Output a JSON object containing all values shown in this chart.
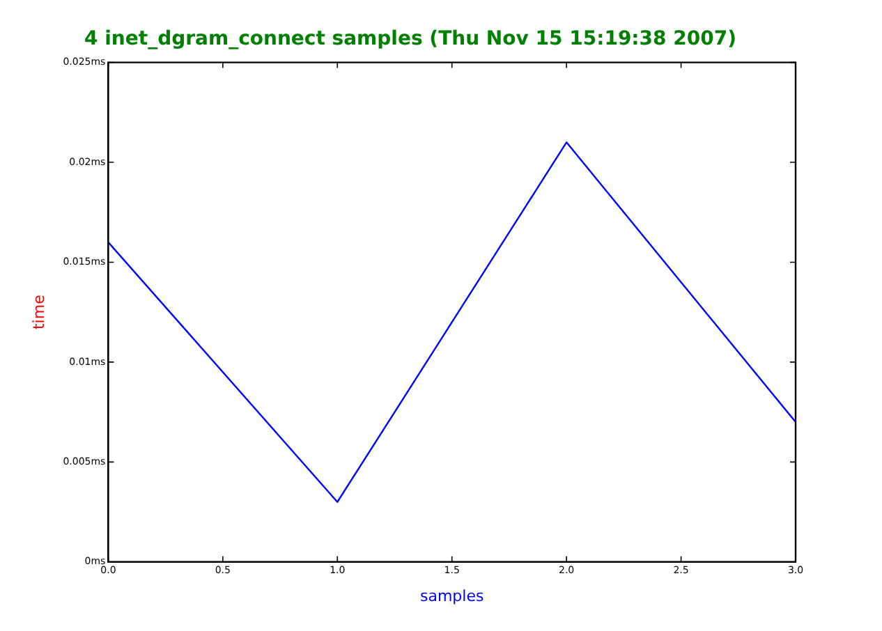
{
  "chart_data": {
    "type": "line",
    "title": "4 inet_dgram_connect samples (Thu Nov 15 15:19:38 2007)",
    "xlabel": "samples",
    "ylabel": "time",
    "x": [
      0,
      1,
      2,
      3
    ],
    "series": [
      {
        "color": "#0000ff",
        "values": [
          0.016,
          0.003,
          0.021,
          0.007
        ]
      }
    ],
    "xlim": [
      0,
      3
    ],
    "xticks": [
      {
        "value": 0,
        "label": "0.0"
      },
      {
        "value": 0.5,
        "label": "0.5"
      },
      {
        "value": 1,
        "label": "1.0"
      },
      {
        "value": 1.5,
        "label": "1.5"
      },
      {
        "value": 2,
        "label": "2.0"
      },
      {
        "value": 2.5,
        "label": "2.5"
      },
      {
        "value": 3,
        "label": "3.0"
      }
    ],
    "ylim": [
      0,
      0.025
    ],
    "yticks": [
      {
        "value": 0,
        "label": "0ms"
      },
      {
        "value": 0.005,
        "label": "0.005ms"
      },
      {
        "value": 0.01,
        "label": "0.01ms"
      },
      {
        "value": 0.015,
        "label": "0.015ms"
      },
      {
        "value": 0.02,
        "label": "0.02ms"
      },
      {
        "value": 0.025,
        "label": "0.025ms"
      }
    ],
    "grid": false,
    "legend": false,
    "marker": "none",
    "line_style": "solid"
  }
}
